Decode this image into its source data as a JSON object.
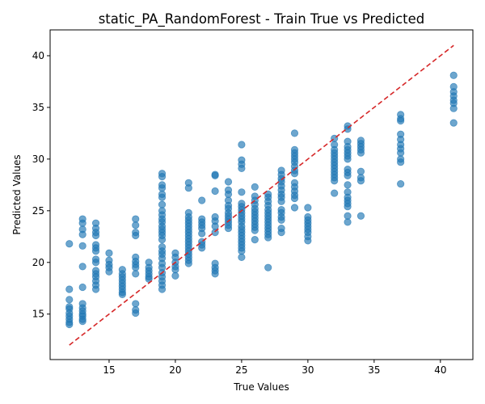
{
  "chart_data": {
    "type": "scatter",
    "title": "static_PA_RandomForest - Train True vs Predicted",
    "xlabel": "True Values",
    "ylabel": "Predicted Values",
    "xlim": [
      10.55,
      42.45
    ],
    "ylim": [
      10.6,
      42.5
    ],
    "xticks": [
      15,
      20,
      25,
      30,
      35,
      40
    ],
    "yticks": [
      15,
      20,
      25,
      30,
      35,
      40
    ],
    "grid": false,
    "reference_line": {
      "x": [
        12,
        41
      ],
      "y": [
        12,
        41
      ],
      "color": "#d62728",
      "style": "dashed"
    },
    "point_color": "#1f77b4",
    "points": [
      [
        12,
        21.8
      ],
      [
        12,
        17.4
      ],
      [
        12,
        16.4
      ],
      [
        12,
        15.7
      ],
      [
        12,
        15.5
      ],
      [
        12,
        15.1
      ],
      [
        12,
        14.8
      ],
      [
        12,
        14.5
      ],
      [
        12,
        14.2
      ],
      [
        12,
        14.0
      ],
      [
        13,
        24.2
      ],
      [
        13,
        23.8
      ],
      [
        13,
        23.2
      ],
      [
        13,
        22.7
      ],
      [
        13,
        21.6
      ],
      [
        13,
        19.6
      ],
      [
        13,
        17.6
      ],
      [
        13,
        16.0
      ],
      [
        13,
        15.6
      ],
      [
        13,
        15.3
      ],
      [
        13,
        15.0
      ],
      [
        13,
        14.8
      ],
      [
        13,
        14.5
      ],
      [
        13,
        14.3
      ],
      [
        14,
        23.8
      ],
      [
        14,
        23.3
      ],
      [
        14,
        22.9
      ],
      [
        14,
        22.6
      ],
      [
        14,
        21.7
      ],
      [
        14,
        21.4
      ],
      [
        14,
        21.1
      ],
      [
        14,
        20.3
      ],
      [
        14,
        20.0
      ],
      [
        14,
        19.2
      ],
      [
        14,
        18.9
      ],
      [
        14,
        18.6
      ],
      [
        14,
        18.2
      ],
      [
        14,
        17.8
      ],
      [
        14,
        17.4
      ],
      [
        15,
        20.9
      ],
      [
        15,
        20.2
      ],
      [
        15,
        19.8
      ],
      [
        15,
        19.5
      ],
      [
        15,
        19.1
      ],
      [
        16,
        19.3
      ],
      [
        16,
        18.9
      ],
      [
        16,
        18.6
      ],
      [
        16,
        18.3
      ],
      [
        16,
        18.0
      ],
      [
        16,
        17.7
      ],
      [
        16,
        17.4
      ],
      [
        16,
        17.1
      ],
      [
        16,
        16.9
      ],
      [
        17,
        24.2
      ],
      [
        17,
        23.6
      ],
      [
        17,
        22.9
      ],
      [
        17,
        22.6
      ],
      [
        17,
        20.5
      ],
      [
        17,
        20.1
      ],
      [
        17,
        19.8
      ],
      [
        17,
        19.5
      ],
      [
        17,
        18.9
      ],
      [
        17,
        16.0
      ],
      [
        17,
        15.4
      ],
      [
        17,
        15.1
      ],
      [
        18,
        20.0
      ],
      [
        18,
        19.5
      ],
      [
        18,
        19.2
      ],
      [
        18,
        18.9
      ],
      [
        18,
        18.6
      ],
      [
        18,
        18.4
      ],
      [
        19,
        28.6
      ],
      [
        19,
        28.3
      ],
      [
        19,
        27.5
      ],
      [
        19,
        27.2
      ],
      [
        19,
        26.6
      ],
      [
        19,
        26.3
      ],
      [
        19,
        25.6
      ],
      [
        19,
        25.0
      ],
      [
        19,
        24.6
      ],
      [
        19,
        24.2
      ],
      [
        19,
        23.9
      ],
      [
        19,
        23.5
      ],
      [
        19,
        23.2
      ],
      [
        19,
        22.9
      ],
      [
        19,
        22.6
      ],
      [
        19,
        22.2
      ],
      [
        19,
        21.5
      ],
      [
        19,
        21.1
      ],
      [
        19,
        20.8
      ],
      [
        19,
        20.4
      ],
      [
        19,
        19.9
      ],
      [
        19,
        19.5
      ],
      [
        19,
        19.0
      ],
      [
        19,
        18.6
      ],
      [
        19,
        18.2
      ],
      [
        19,
        17.8
      ],
      [
        19,
        17.4
      ],
      [
        20,
        20.9
      ],
      [
        20,
        20.5
      ],
      [
        20,
        20.0
      ],
      [
        20,
        19.6
      ],
      [
        20,
        19.3
      ],
      [
        20,
        18.7
      ],
      [
        21,
        27.7
      ],
      [
        21,
        27.2
      ],
      [
        21,
        24.8
      ],
      [
        21,
        24.4
      ],
      [
        21,
        24.1
      ],
      [
        21,
        23.8
      ],
      [
        21,
        23.5
      ],
      [
        21,
        23.2
      ],
      [
        21,
        22.9
      ],
      [
        21,
        22.6
      ],
      [
        21,
        22.3
      ],
      [
        21,
        22.0
      ],
      [
        21,
        21.7
      ],
      [
        21,
        21.4
      ],
      [
        21,
        21.1
      ],
      [
        21,
        20.8
      ],
      [
        21,
        20.5
      ],
      [
        21,
        20.2
      ],
      [
        21,
        19.9
      ],
      [
        22,
        26.0
      ],
      [
        22,
        24.2
      ],
      [
        22,
        23.9
      ],
      [
        22,
        23.6
      ],
      [
        22,
        23.3
      ],
      [
        22,
        22.8
      ],
      [
        22,
        22.0
      ],
      [
        22,
        21.7
      ],
      [
        22,
        21.4
      ],
      [
        23,
        28.5
      ],
      [
        23,
        28.4
      ],
      [
        23,
        26.9
      ],
      [
        23,
        24.4
      ],
      [
        23,
        24.0
      ],
      [
        23,
        23.5
      ],
      [
        23,
        22.9
      ],
      [
        23,
        19.9
      ],
      [
        23,
        19.5
      ],
      [
        23,
        19.2
      ],
      [
        23,
        18.9
      ],
      [
        24,
        27.8
      ],
      [
        24,
        27.0
      ],
      [
        24,
        26.6
      ],
      [
        24,
        26.0
      ],
      [
        24,
        25.5
      ],
      [
        24,
        25.2
      ],
      [
        24,
        24.8
      ],
      [
        24,
        24.5
      ],
      [
        24,
        24.2
      ],
      [
        24,
        23.9
      ],
      [
        24,
        23.6
      ],
      [
        24,
        23.3
      ],
      [
        25,
        31.4
      ],
      [
        25,
        29.9
      ],
      [
        25,
        29.5
      ],
      [
        25,
        29.1
      ],
      [
        25,
        26.8
      ],
      [
        25,
        25.7
      ],
      [
        25,
        25.4
      ],
      [
        25,
        25.1
      ],
      [
        25,
        24.8
      ],
      [
        25,
        24.5
      ],
      [
        25,
        24.2
      ],
      [
        25,
        23.9
      ],
      [
        25,
        23.5
      ],
      [
        25,
        23.2
      ],
      [
        25,
        22.9
      ],
      [
        25,
        22.6
      ],
      [
        25,
        22.3
      ],
      [
        25,
        22.0
      ],
      [
        25,
        21.7
      ],
      [
        25,
        21.4
      ],
      [
        25,
        21.1
      ],
      [
        25,
        20.5
      ],
      [
        26,
        27.3
      ],
      [
        26,
        26.4
      ],
      [
        26,
        26.0
      ],
      [
        26,
        25.6
      ],
      [
        26,
        25.2
      ],
      [
        26,
        24.9
      ],
      [
        26,
        24.6
      ],
      [
        26,
        24.3
      ],
      [
        26,
        24.0
      ],
      [
        26,
        23.7
      ],
      [
        26,
        23.4
      ],
      [
        26,
        23.1
      ],
      [
        26,
        22.2
      ],
      [
        27,
        26.6
      ],
      [
        27,
        26.3
      ],
      [
        27,
        25.9
      ],
      [
        27,
        25.5
      ],
      [
        27,
        25.1
      ],
      [
        27,
        24.8
      ],
      [
        27,
        24.5
      ],
      [
        27,
        24.2
      ],
      [
        27,
        23.9
      ],
      [
        27,
        23.6
      ],
      [
        27,
        23.3
      ],
      [
        27,
        23.0
      ],
      [
        27,
        22.7
      ],
      [
        27,
        22.4
      ],
      [
        27,
        19.5
      ],
      [
        28,
        28.9
      ],
      [
        28,
        28.5
      ],
      [
        28,
        28.1
      ],
      [
        28,
        27.8
      ],
      [
        28,
        27.4
      ],
      [
        28,
        27.0
      ],
      [
        28,
        26.6
      ],
      [
        28,
        26.3
      ],
      [
        28,
        25.9
      ],
      [
        28,
        25.1
      ],
      [
        28,
        24.8
      ],
      [
        28,
        24.4
      ],
      [
        28,
        24.1
      ],
      [
        28,
        23.3
      ],
      [
        28,
        22.9
      ],
      [
        29,
        32.5
      ],
      [
        29,
        30.9
      ],
      [
        29,
        30.6
      ],
      [
        29,
        30.3
      ],
      [
        29,
        30.0
      ],
      [
        29,
        29.7
      ],
      [
        29,
        29.3
      ],
      [
        29,
        28.9
      ],
      [
        29,
        28.6
      ],
      [
        29,
        27.7
      ],
      [
        29,
        27.3
      ],
      [
        29,
        26.9
      ],
      [
        29,
        26.5
      ],
      [
        29,
        26.2
      ],
      [
        29,
        25.3
      ],
      [
        30,
        25.3
      ],
      [
        30,
        24.4
      ],
      [
        30,
        24.1
      ],
      [
        30,
        23.8
      ],
      [
        30,
        23.5
      ],
      [
        30,
        23.2
      ],
      [
        30,
        22.9
      ],
      [
        30,
        22.5
      ],
      [
        30,
        22.1
      ],
      [
        32,
        32.0
      ],
      [
        32,
        31.4
      ],
      [
        32,
        30.9
      ],
      [
        32,
        30.6
      ],
      [
        32,
        30.3
      ],
      [
        32,
        30.0
      ],
      [
        32,
        29.7
      ],
      [
        32,
        29.4
      ],
      [
        32,
        29.1
      ],
      [
        32,
        28.8
      ],
      [
        32,
        28.5
      ],
      [
        32,
        28.2
      ],
      [
        32,
        27.9
      ],
      [
        32,
        26.7
      ],
      [
        33,
        33.2
      ],
      [
        33,
        32.9
      ],
      [
        33,
        31.7
      ],
      [
        33,
        31.2
      ],
      [
        33,
        30.9
      ],
      [
        33,
        30.6
      ],
      [
        33,
        30.3
      ],
      [
        33,
        30.0
      ],
      [
        33,
        29.0
      ],
      [
        33,
        28.7
      ],
      [
        33,
        28.4
      ],
      [
        33,
        27.5
      ],
      [
        33,
        26.8
      ],
      [
        33,
        26.3
      ],
      [
        33,
        26.0
      ],
      [
        33,
        25.7
      ],
      [
        33,
        25.4
      ],
      [
        33,
        24.5
      ],
      [
        33,
        23.9
      ],
      [
        34,
        31.8
      ],
      [
        34,
        31.5
      ],
      [
        34,
        31.2
      ],
      [
        34,
        30.9
      ],
      [
        34,
        30.6
      ],
      [
        34,
        28.8
      ],
      [
        34,
        28.2
      ],
      [
        34,
        27.9
      ],
      [
        34,
        24.5
      ],
      [
        37,
        34.3
      ],
      [
        37,
        33.9
      ],
      [
        37,
        33.7
      ],
      [
        37,
        32.4
      ],
      [
        37,
        31.9
      ],
      [
        37,
        31.4
      ],
      [
        37,
        31.0
      ],
      [
        37,
        30.6
      ],
      [
        37,
        30.0
      ],
      [
        37,
        29.7
      ],
      [
        37,
        27.6
      ],
      [
        41,
        38.1
      ],
      [
        41,
        37.0
      ],
      [
        41,
        36.5
      ],
      [
        41,
        36.1
      ],
      [
        41,
        35.7
      ],
      [
        41,
        35.4
      ],
      [
        41,
        34.9
      ],
      [
        41,
        33.5
      ]
    ]
  }
}
